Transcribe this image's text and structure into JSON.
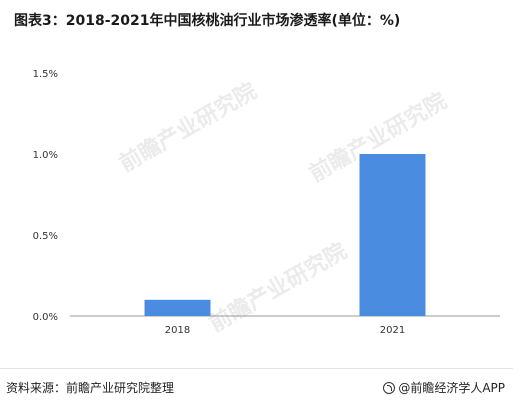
{
  "header": {
    "title": "图表3：2018-2021年中国核桃油行业市场渗透率(单位：%)"
  },
  "footer": {
    "source": "资料来源：前瞻产业研究院整理",
    "brand": "@前瞻经济学人APP"
  },
  "watermark": {
    "text": "前瞻产业研究院"
  },
  "colors": {
    "bar": "#4a8de0",
    "axis": "#999999",
    "text": "#333333"
  },
  "chart_data": {
    "type": "bar",
    "categories": [
      "2018",
      "2021"
    ],
    "values": [
      0.1,
      1.0
    ],
    "ylim": [
      0,
      1.5
    ],
    "yticks": [
      "0.0%",
      "0.5%",
      "1.0%",
      "1.5%"
    ],
    "ytick_values": [
      0,
      0.5,
      1.0,
      1.5
    ],
    "grid": false,
    "title": "图表3：2018-2021年中国核桃油行业市场渗透率(单位：%)"
  }
}
